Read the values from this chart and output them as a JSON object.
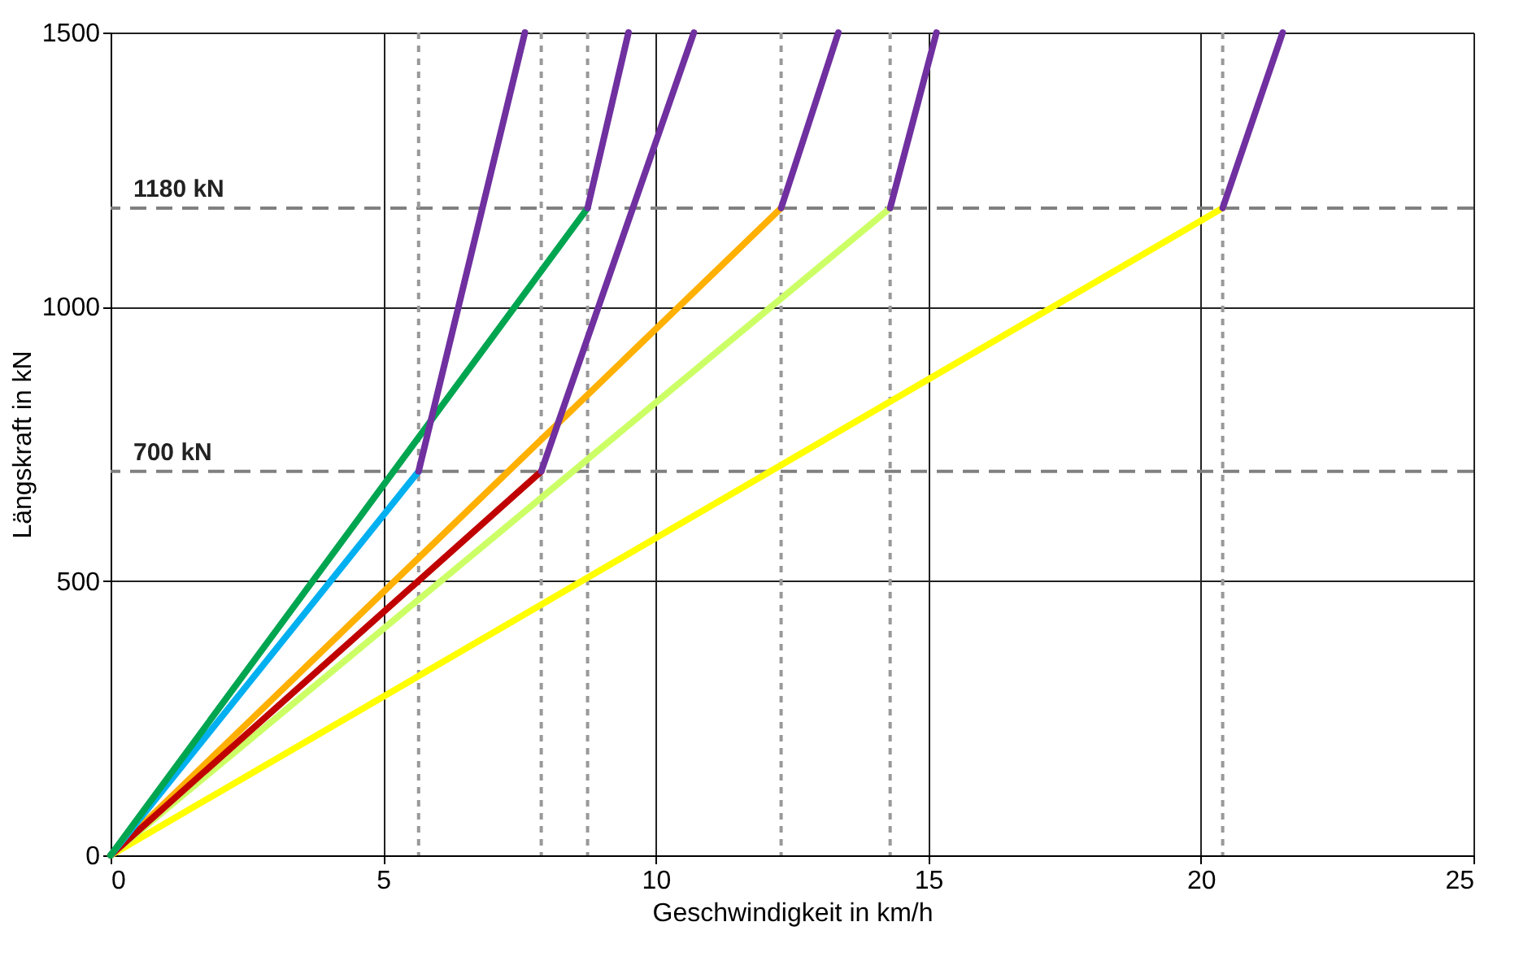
{
  "chart_data": {
    "type": "line",
    "xlabel": "Geschwindigkeit in km/h",
    "ylabel": "Längskraft in kN",
    "xlim": [
      0,
      25
    ],
    "xticks": [
      0,
      5,
      10,
      15,
      20,
      25
    ],
    "ylim": [
      0,
      1500
    ],
    "yticks": [
      0,
      500,
      1000,
      1500
    ],
    "grid": true,
    "marker": "none",
    "line_style": "solid",
    "series": [
      {
        "color": "#ffff00",
        "x": [
          0,
          20.4
        ],
        "values": [
          0,
          1180
        ]
      },
      {
        "color": "#ccff66",
        "x": [
          0,
          14.3
        ],
        "values": [
          0,
          1180
        ]
      },
      {
        "color": "#ffb000",
        "x": [
          0,
          12.3
        ],
        "values": [
          0,
          1180
        ]
      },
      {
        "color": "#c00000",
        "x": [
          0,
          7.9
        ],
        "values": [
          0,
          700
        ]
      },
      {
        "color": "#00b0f0",
        "x": [
          0,
          5.65
        ],
        "values": [
          0,
          700
        ]
      },
      {
        "color": "#00a550",
        "x": [
          0,
          8.75
        ],
        "values": [
          0,
          1180
        ]
      },
      {
        "color": "#7030a0",
        "x": [
          5.65,
          7.6
        ],
        "values": [
          700,
          1500
        ]
      },
      {
        "color": "#7030a0",
        "x": [
          8.75,
          9.5
        ],
        "values": [
          1180,
          1500
        ]
      },
      {
        "color": "#7030a0",
        "x": [
          7.9,
          10.7
        ],
        "values": [
          700,
          1500
        ]
      },
      {
        "color": "#7030a0",
        "x": [
          12.3,
          13.35
        ],
        "values": [
          1180,
          1500
        ]
      },
      {
        "color": "#7030a0",
        "x": [
          14.3,
          15.15
        ],
        "values": [
          1180,
          1500
        ]
      },
      {
        "color": "#7030a0",
        "x": [
          20.4,
          21.5
        ],
        "values": [
          1180,
          1500
        ]
      }
    ],
    "ref_lines": [
      {
        "axis": "y",
        "value": 1180,
        "label": "1180 kN",
        "color": "#808080",
        "line_style": "dashed"
      },
      {
        "axis": "y",
        "value": 700,
        "label": "700 kN",
        "color": "#808080",
        "line_style": "dashed"
      },
      {
        "axis": "x",
        "value": 5.65,
        "label": null,
        "color": "#999999",
        "line_style": "dotted"
      },
      {
        "axis": "x",
        "value": 7.9,
        "label": null,
        "color": "#999999",
        "line_style": "dotted"
      },
      {
        "axis": "x",
        "value": 8.75,
        "label": null,
        "color": "#999999",
        "line_style": "dotted"
      },
      {
        "axis": "x",
        "value": 12.3,
        "label": null,
        "color": "#999999",
        "line_style": "dotted"
      },
      {
        "axis": "x",
        "value": 14.3,
        "label": null,
        "color": "#999999",
        "line_style": "dotted"
      },
      {
        "axis": "x",
        "value": 20.4,
        "label": null,
        "color": "#999999",
        "line_style": "dotted"
      }
    ]
  }
}
